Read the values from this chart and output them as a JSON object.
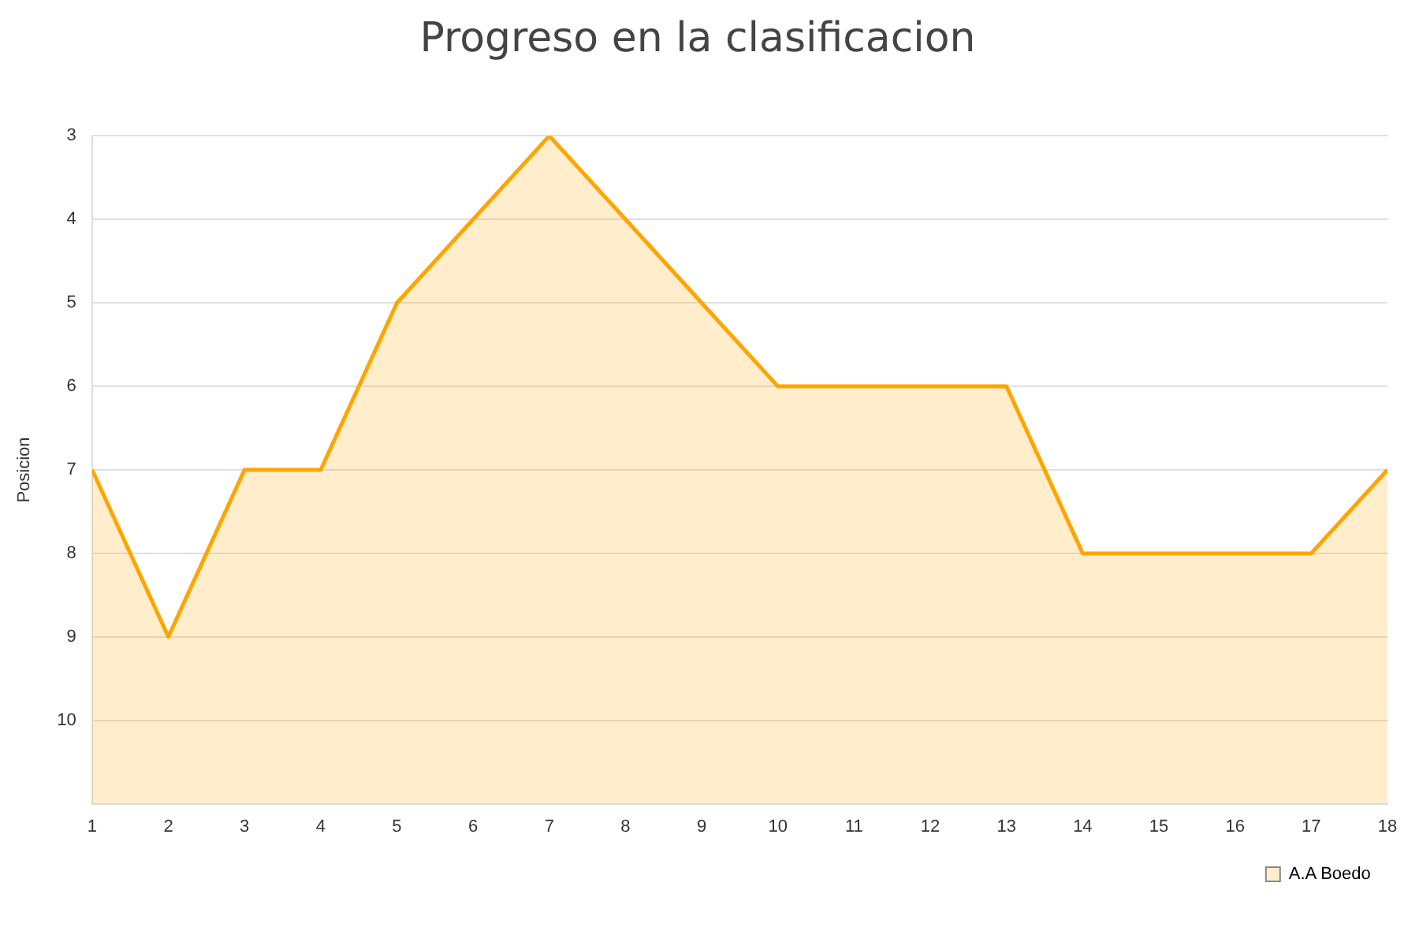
{
  "chart_data": {
    "type": "area",
    "title": "Progreso en la clasificacion",
    "ylabel": "Posicion",
    "x": [
      1,
      2,
      3,
      4,
      5,
      6,
      7,
      8,
      9,
      10,
      11,
      12,
      13,
      14,
      15,
      16,
      17,
      18
    ],
    "xlim": [
      1,
      18
    ],
    "xticks": [
      1,
      2,
      3,
      4,
      5,
      6,
      7,
      8,
      9,
      10,
      11,
      12,
      13,
      14,
      15,
      16,
      17,
      18
    ],
    "series": [
      {
        "name": "A.A Boedo",
        "color": "#ffa500",
        "values": [
          7,
          9,
          7,
          7,
          5,
          4,
          3,
          4,
          5,
          6,
          6,
          6,
          6,
          8,
          8,
          8,
          8,
          7
        ]
      }
    ],
    "ylim": [
      11,
      3
    ],
    "yticks": [
      3,
      4,
      5,
      6,
      7,
      8,
      9,
      10
    ],
    "grid": "y",
    "legend": "bottom right",
    "marker": "none",
    "line_style": "solid"
  }
}
